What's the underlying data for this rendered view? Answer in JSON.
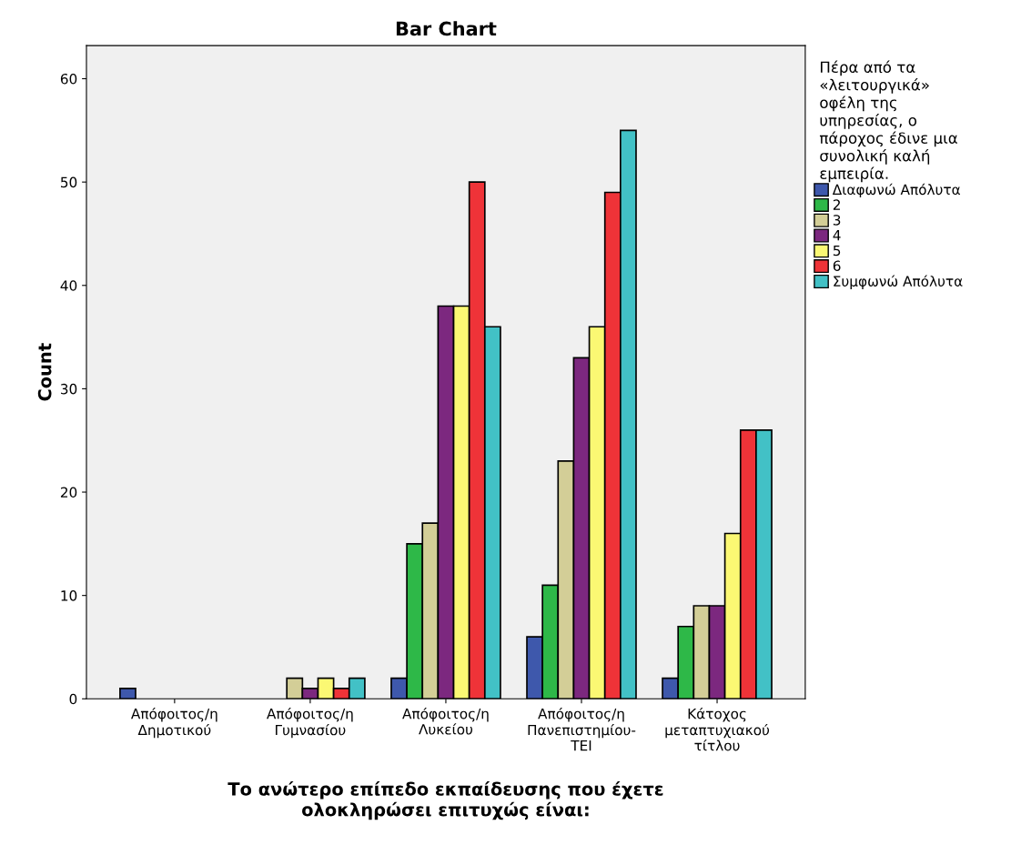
{
  "chart_data": {
    "type": "bar",
    "title": "Bar Chart",
    "xlabel": "Το ανώτερο επίπεδο εκπαίδευσης που έχετε\nολοκληρώσει επιτυχώς είναι:",
    "ylabel": "Count",
    "legend_title": "Πέρα από τα\n«λειτουργικά»\nοφέλη της\nυπηρεσίας, ο\nπάροχος έδινε μια\nσυνολική καλή\nεμπειρία.",
    "categories": [
      "Απόφοιτος/η\nΔημοτικού",
      "Απόφοιτος/η\nΓυμνασίου",
      "Απόφοιτος/η\nΛυκείου",
      "Απόφοιτος/η\nΠανεπιστημίου-\nΤΕΙ",
      "Κάτοχος\nμεταπτυχιακού\nτίτλου"
    ],
    "series": [
      {
        "name": "Διαφωνώ Απόλυτα",
        "color": "#3e58ac",
        "values": [
          1,
          null,
          2,
          6,
          2
        ]
      },
      {
        "name": "2",
        "color": "#2eb848",
        "values": [
          null,
          null,
          15,
          11,
          7
        ]
      },
      {
        "name": "3",
        "color": "#d3ce97",
        "values": [
          null,
          2,
          17,
          23,
          9
        ]
      },
      {
        "name": "4",
        "color": "#7c287f",
        "values": [
          null,
          1,
          38,
          33,
          9
        ]
      },
      {
        "name": "5",
        "color": "#fbf873",
        "values": [
          null,
          2,
          38,
          36,
          16
        ]
      },
      {
        "name": "6",
        "color": "#ef3338",
        "values": [
          null,
          1,
          50,
          49,
          26
        ]
      },
      {
        "name": "Συμφωνώ Απόλυτα",
        "color": "#42c1c6",
        "values": [
          null,
          2,
          36,
          55,
          26
        ]
      }
    ],
    "ylim": [
      0,
      63.2
    ],
    "yticks": [
      0,
      10,
      20,
      30,
      40,
      50,
      60
    ],
    "grid": false,
    "legend": "right"
  }
}
